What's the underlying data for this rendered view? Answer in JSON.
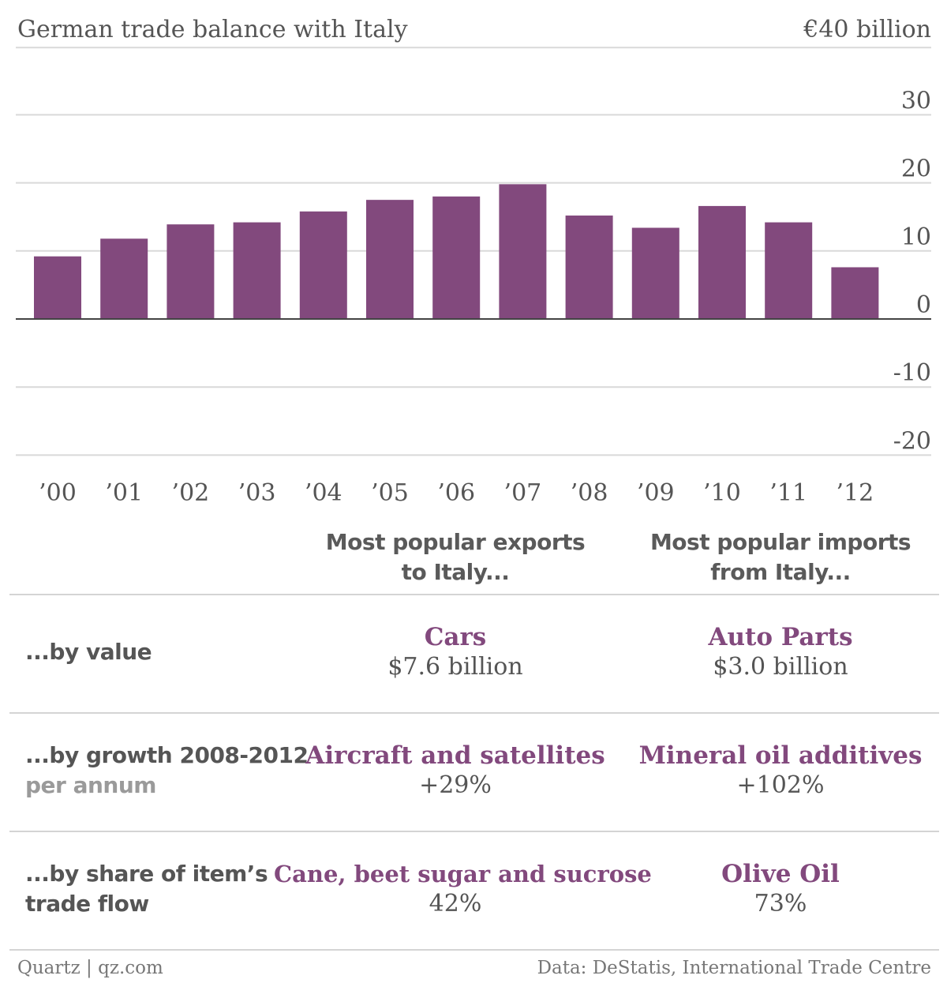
{
  "chart_data": {
    "type": "bar",
    "title": "German trade balance with Italy",
    "unit_label": "€40 billion",
    "categories": [
      "’00",
      "’01",
      "’02",
      "’03",
      "’04",
      "’05",
      "’06",
      "’07",
      "’08",
      "’09",
      "’10",
      "’11",
      "’12"
    ],
    "values": [
      9.2,
      11.8,
      13.9,
      14.2,
      15.8,
      17.5,
      18.0,
      19.8,
      15.2,
      13.4,
      16.6,
      14.2,
      7.6
    ],
    "ylim": [
      -20,
      40
    ],
    "yticks": [
      "30",
      "20",
      "10",
      "0",
      "-10",
      "-20"
    ],
    "ytick_values": [
      30,
      20,
      10,
      0,
      -10,
      -20
    ],
    "grid": true,
    "bar_color": "#82497d"
  },
  "table": {
    "col_exports": [
      "Most popular exports",
      "to Italy..."
    ],
    "col_imports": [
      "Most popular imports",
      "from Italy..."
    ],
    "rows": [
      {
        "label": [
          "...by value"
        ],
        "sub": "",
        "export_item": "Cars",
        "export_value": "$7.6 billion",
        "import_item": "Auto Parts",
        "import_value": "$3.0 billion"
      },
      {
        "label": [
          "...by growth 2008-2012"
        ],
        "sub": "per annum",
        "export_item": "Aircraft and satellites",
        "export_value": "+29%",
        "import_item": "Mineral oil additives",
        "import_value": "+102%"
      },
      {
        "label": [
          "...by share of item’s",
          "trade flow"
        ],
        "sub": "",
        "export_item": "Cane, beet sugar and sucrose",
        "export_value": "42%",
        "import_item": "Olive Oil",
        "import_value": "73%"
      }
    ]
  },
  "footer": {
    "credit": "Quartz | qz.com",
    "source": "Data: DeStatis, International Trade Centre"
  },
  "colors": {
    "accent": "#82497d",
    "text": "#555555",
    "grid": "#d9d9d9"
  }
}
